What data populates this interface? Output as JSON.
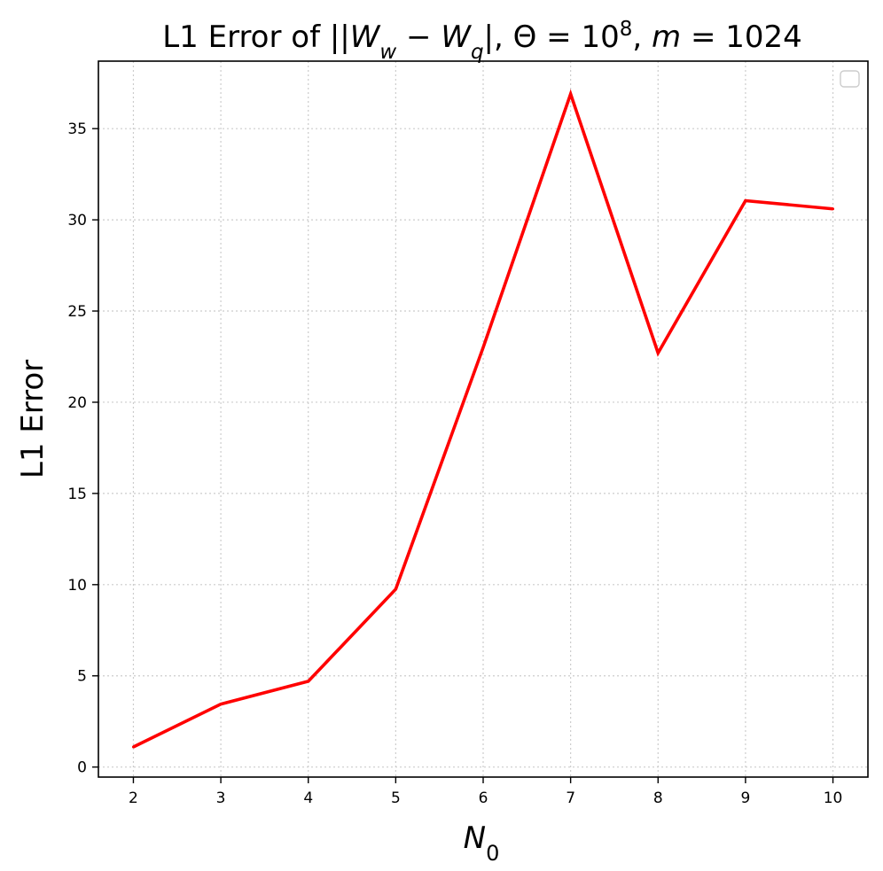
{
  "chart_data": {
    "type": "line",
    "title": {
      "prefix": "L1 Error of ||",
      "w_sub": "w",
      "q_sub": "q",
      "theta_part": "|, Θ = 10",
      "theta_exp": "8",
      "m_part": ", ",
      "m_var": "m",
      "m_value": " = 1024"
    },
    "xlabel": {
      "var": "N",
      "sub": "0"
    },
    "ylabel": "L1 Error",
    "x": [
      2,
      3,
      4,
      5,
      6,
      7,
      8,
      9,
      10
    ],
    "series": [
      {
        "values": [
          1.1,
          3.45,
          4.7,
          9.75,
          23.0,
          36.9,
          22.7,
          31.05,
          30.6
        ],
        "color": "#ff0000"
      }
    ],
    "xlim": [
      1.6,
      10.4
    ],
    "ylim": [
      -0.55,
      38.7
    ],
    "xticks": [
      2,
      3,
      4,
      5,
      6,
      7,
      8,
      9,
      10
    ],
    "yticks": [
      0,
      5,
      10,
      15,
      20,
      25,
      30,
      35
    ],
    "grid": true,
    "legend": {
      "placement": "top-right",
      "entries": []
    }
  }
}
